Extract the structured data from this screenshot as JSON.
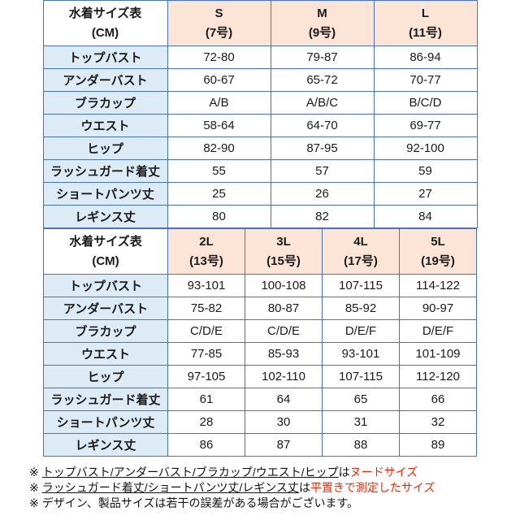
{
  "table1": {
    "title_line1": "水着サイズ表",
    "title_line2": "(CM)",
    "columns": [
      {
        "size": "S",
        "num": "(7号)"
      },
      {
        "size": "M",
        "num": "(9号)"
      },
      {
        "size": "L",
        "num": "(11号)"
      }
    ],
    "rows": [
      {
        "label": "トップバスト",
        "values": [
          "72-80",
          "79-87",
          "86-94"
        ]
      },
      {
        "label": "アンダーバスト",
        "values": [
          "60-67",
          "65-72",
          "70-77"
        ]
      },
      {
        "label": "ブラカップ",
        "values": [
          "A/B",
          "A/B/C",
          "B/C/D"
        ]
      },
      {
        "label": "ウエスト",
        "values": [
          "58-64",
          "64-70",
          "69-77"
        ]
      },
      {
        "label": "ヒップ",
        "values": [
          "82-90",
          "87-95",
          "92-100"
        ]
      },
      {
        "label": "ラッシュガード着丈",
        "values": [
          "55",
          "57",
          "59"
        ]
      },
      {
        "label": "ショートパンツ丈",
        "values": [
          "25",
          "26",
          "27"
        ]
      },
      {
        "label": "レギンス丈",
        "values": [
          "80",
          "82",
          "84"
        ]
      }
    ]
  },
  "table2": {
    "title_line1": "水着サイズ表",
    "title_line2": "(CM)",
    "columns": [
      {
        "size": "2L",
        "num": "(13号)"
      },
      {
        "size": "3L",
        "num": "(15号)"
      },
      {
        "size": "4L",
        "num": "(17号)"
      },
      {
        "size": "5L",
        "num": "(19号)"
      }
    ],
    "rows": [
      {
        "label": "トップバスト",
        "values": [
          "93-101",
          "100-108",
          "107-115",
          "114-122"
        ]
      },
      {
        "label": "アンダーバスト",
        "values": [
          "75-82",
          "80-87",
          "85-92",
          "90-97"
        ]
      },
      {
        "label": "ブラカップ",
        "values": [
          "C/D/E",
          "C/D/E",
          "D/E/F",
          "D/E/F"
        ]
      },
      {
        "label": "ウエスト",
        "values": [
          "77-85",
          "85-93",
          "93-101",
          "101-109"
        ]
      },
      {
        "label": "ヒップ",
        "values": [
          "97-105",
          "102-110",
          "107-115",
          "112-120"
        ]
      },
      {
        "label": "ラッシュガード着丈",
        "values": [
          "61",
          "64",
          "65",
          "66"
        ]
      },
      {
        "label": "ショートパンツ丈",
        "values": [
          "28",
          "30",
          "31",
          "32"
        ]
      },
      {
        "label": "レギンス丈",
        "values": [
          "86",
          "87",
          "88",
          "89"
        ]
      }
    ]
  },
  "notes": [
    {
      "marker": "※",
      "underline": "トップバスト/アンダーバスト/ブラカップ/ウエスト/ヒップ",
      "plain": "は",
      "red": "ヌードサイズ"
    },
    {
      "marker": "※",
      "underline": "ラッシュガード着丈/ショートパンツ丈/レギンス丈",
      "plain": "は",
      "red": "平置きで測定したサイズ"
    },
    {
      "marker": "※",
      "underline": "",
      "plain": "デザイン、製品サイズは若干の誤差がある場合がございます。",
      "red": ""
    }
  ],
  "colors": {
    "border_blue": "#4472c4",
    "header_peach_bg": "#fce4d6",
    "label_blue_bg": "#ddebf7",
    "note_red": "#ff2400"
  }
}
